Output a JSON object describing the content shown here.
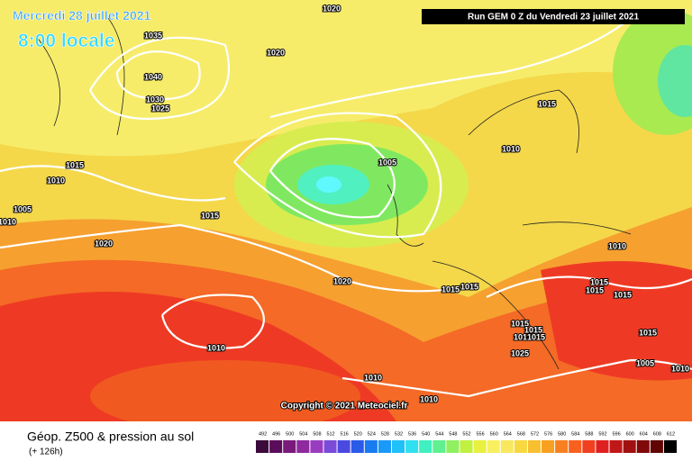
{
  "header": {
    "date": "Mercredi 28 juillet 2021",
    "time": "8:00 locale",
    "run": "Run GEM 0 Z du Vendredi 23 juillet 2021"
  },
  "isobars": {
    "labels": [
      "1020",
      "1035",
      "1020",
      "1040",
      "1030",
      "1025",
      "1015",
      "1010",
      "1005",
      "1015",
      "1010",
      "1005",
      "1010",
      "1015",
      "1020",
      "1010",
      "1020",
      "1015",
      "1015",
      "1015",
      "1015",
      "1015",
      "1015",
      "1015",
      "1015",
      "1015",
      "1015",
      "1025",
      "1010",
      "1010",
      "1005",
      "1010",
      "1010"
    ]
  },
  "footer": {
    "title": "Géop. Z500 & pression au sol",
    "subtitle": "(+ 126h)",
    "copyright": "Copyright © 2021 Meteociel.fr"
  },
  "legend": {
    "values": [
      492,
      496,
      500,
      504,
      508,
      512,
      516,
      520,
      524,
      528,
      532,
      536,
      540,
      544,
      548,
      552,
      556,
      560,
      564,
      568,
      572,
      576,
      580,
      584,
      588,
      592,
      596,
      600,
      604,
      608,
      612
    ],
    "colors": [
      "#3b0a3b",
      "#5a0d5a",
      "#7a1a7a",
      "#8e2a9e",
      "#9a3cc0",
      "#7a4ad8",
      "#4a4ae0",
      "#2a5ae8",
      "#1a7af0",
      "#1a9af8",
      "#20c0f8",
      "#30e0f0",
      "#40f0c0",
      "#60f090",
      "#90f060",
      "#c0f040",
      "#e8f040",
      "#f8f060",
      "#f8e860",
      "#f8d840",
      "#f8c030",
      "#f8a020",
      "#f88020",
      "#f86020",
      "#f04020",
      "#e02020",
      "#c01818",
      "#a01010",
      "#800808",
      "#600404",
      "#000000"
    ]
  }
}
